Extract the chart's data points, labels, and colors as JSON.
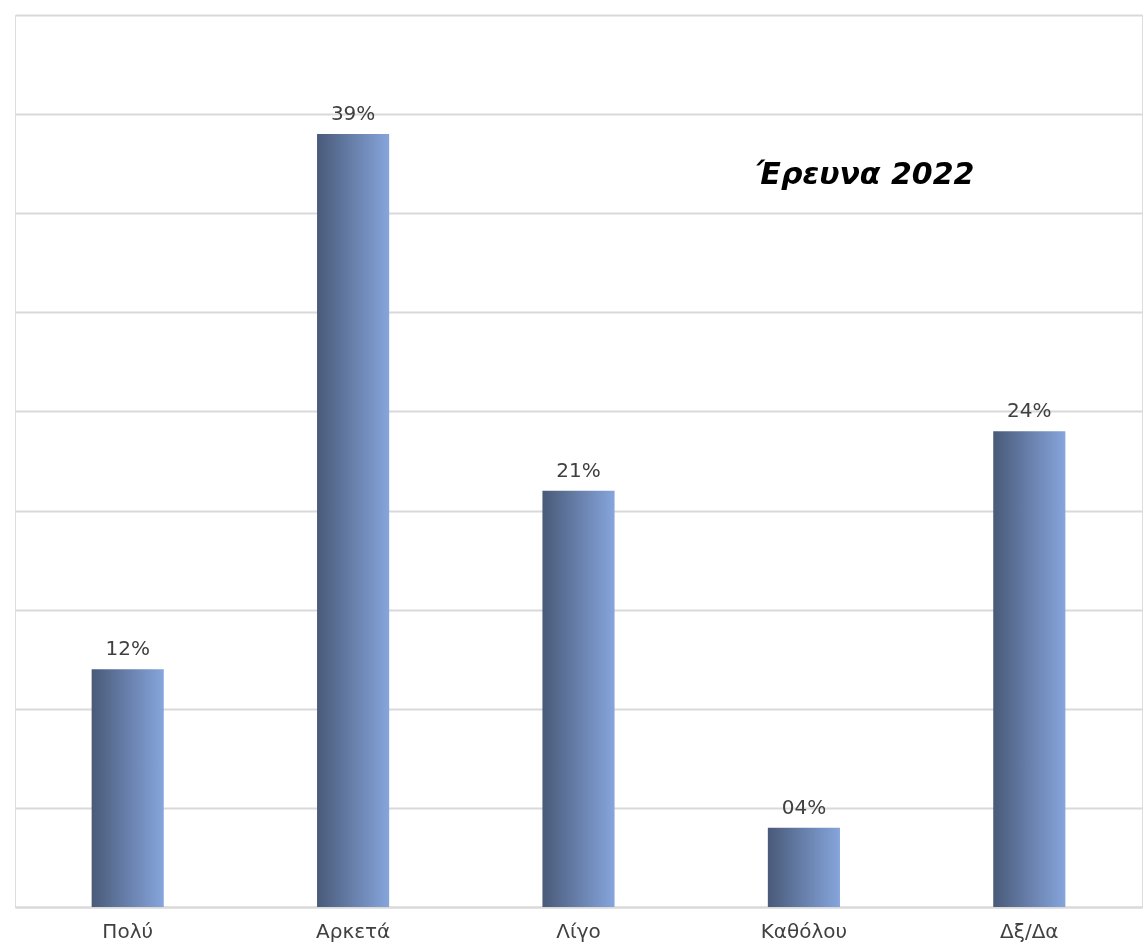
{
  "chart_data": {
    "type": "bar",
    "title": "Έρευνα 2022",
    "categories": [
      "Πολύ",
      "Αρκετά",
      "Λίγο",
      "Καθόλου",
      "Δξ/Δα"
    ],
    "values": [
      12,
      39,
      21,
      4,
      24
    ],
    "value_labels": [
      "12%",
      "39%",
      "21%",
      "04%",
      "24%"
    ],
    "color": "#86a5dc",
    "ylim": [
      0,
      45
    ],
    "yticks": [
      {
        "value": 0,
        "label": null
      },
      {
        "value": 5,
        "label": null
      },
      {
        "value": 10,
        "label": null
      },
      {
        "value": 15,
        "label": null
      },
      {
        "value": 20,
        "label": null
      },
      {
        "value": 25,
        "label": null
      },
      {
        "value": 30,
        "label": null
      },
      {
        "value": 35,
        "label": null
      },
      {
        "value": 40,
        "label": null
      },
      {
        "value": 45,
        "label": null
      }
    ],
    "grid": "y",
    "tick_labels": "x"
  }
}
